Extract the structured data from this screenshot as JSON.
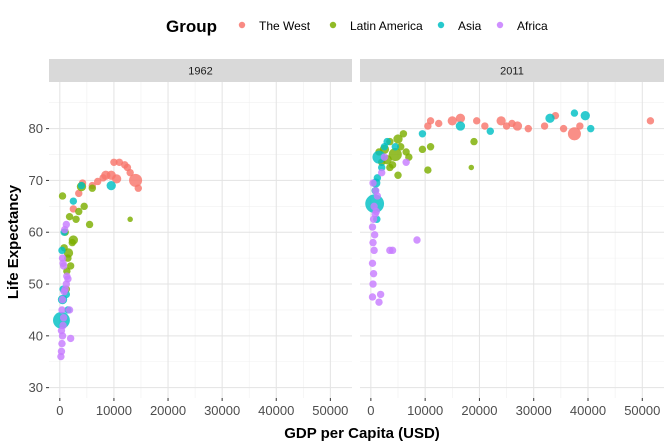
{
  "chart_data": {
    "type": "scatter",
    "facet_by": "year",
    "xlabel": "GDP per Capita (USD)",
    "ylabel": "Life Expectancy",
    "xlim": [
      -2000,
      54000
    ],
    "ylim": [
      28,
      89
    ],
    "xticks": [
      0,
      10000,
      20000,
      30000,
      40000,
      50000
    ],
    "yticks": [
      30,
      40,
      50,
      60,
      70,
      80
    ],
    "grid": true,
    "legend": {
      "title": "Group",
      "position": "top",
      "entries": [
        {
          "name": "The West",
          "color": "#F8766D"
        },
        {
          "name": "Latin America",
          "color": "#7CAE00"
        },
        {
          "name": "Asia",
          "color": "#00BFC4"
        },
        {
          "name": "Africa",
          "color": "#C77CFF"
        }
      ]
    },
    "point_size_note": "point area scales with population",
    "panels": [
      {
        "label": "1962",
        "series": [
          {
            "name": "The West",
            "points": [
              {
                "x": 2500,
                "y": 64.5,
                "s": 2
              },
              {
                "x": 3500,
                "y": 67.5,
                "s": 2
              },
              {
                "x": 4200,
                "y": 69.5,
                "s": 2
              },
              {
                "x": 6000,
                "y": 69.0,
                "s": 2
              },
              {
                "x": 7000,
                "y": 69.8,
                "s": 2
              },
              {
                "x": 8000,
                "y": 70.5,
                "s": 2
              },
              {
                "x": 8500,
                "y": 71.0,
                "s": 3
              },
              {
                "x": 9500,
                "y": 71.0,
                "s": 3
              },
              {
                "x": 10000,
                "y": 73.5,
                "s": 2
              },
              {
                "x": 10500,
                "y": 70.3,
                "s": 3
              },
              {
                "x": 11000,
                "y": 73.5,
                "s": 2
              },
              {
                "x": 12000,
                "y": 73.0,
                "s": 2
              },
              {
                "x": 12500,
                "y": 72.5,
                "s": 2
              },
              {
                "x": 13000,
                "y": 71.5,
                "s": 2
              },
              {
                "x": 14000,
                "y": 70.0,
                "s": 5
              },
              {
                "x": 14500,
                "y": 68.5,
                "s": 2
              }
            ]
          },
          {
            "name": "Latin America",
            "points": [
              {
                "x": 500,
                "y": 67.0,
                "s": 2
              },
              {
                "x": 800,
                "y": 57.0,
                "s": 2
              },
              {
                "x": 1000,
                "y": 60.0,
                "s": 2
              },
              {
                "x": 1200,
                "y": 49.0,
                "s": 2
              },
              {
                "x": 1300,
                "y": 52.5,
                "s": 2
              },
              {
                "x": 1500,
                "y": 55.0,
                "s": 2
              },
              {
                "x": 1600,
                "y": 56.0,
                "s": 3
              },
              {
                "x": 1800,
                "y": 63.0,
                "s": 2
              },
              {
                "x": 2000,
                "y": 53.5,
                "s": 2
              },
              {
                "x": 2300,
                "y": 58.0,
                "s": 2
              },
              {
                "x": 2500,
                "y": 58.5,
                "s": 3
              },
              {
                "x": 3000,
                "y": 62.5,
                "s": 2
              },
              {
                "x": 3500,
                "y": 64.0,
                "s": 2
              },
              {
                "x": 4000,
                "y": 68.8,
                "s": 3
              },
              {
                "x": 4500,
                "y": 65.0,
                "s": 2
              },
              {
                "x": 5500,
                "y": 61.5,
                "s": 2
              },
              {
                "x": 6000,
                "y": 68.5,
                "s": 2
              },
              {
                "x": 13000,
                "y": 62.5,
                "s": 1
              }
            ]
          },
          {
            "name": "Asia",
            "points": [
              {
                "x": 300,
                "y": 43.0,
                "s": 7
              },
              {
                "x": 500,
                "y": 47.0,
                "s": 3
              },
              {
                "x": 600,
                "y": 49.0,
                "s": 2
              },
              {
                "x": 400,
                "y": 56.5,
                "s": 2
              },
              {
                "x": 800,
                "y": 60.0,
                "s": 2
              },
              {
                "x": 1200,
                "y": 48.0,
                "s": 2
              },
              {
                "x": 1500,
                "y": 45.0,
                "s": 2
              },
              {
                "x": 2500,
                "y": 66.0,
                "s": 2
              },
              {
                "x": 4000,
                "y": 69.0,
                "s": 2
              },
              {
                "x": 9500,
                "y": 69.0,
                "s": 3
              }
            ]
          },
          {
            "name": "Africa",
            "points": [
              {
                "x": 200,
                "y": 36.0,
                "s": 2
              },
              {
                "x": 300,
                "y": 37.0,
                "s": 2
              },
              {
                "x": 400,
                "y": 38.5,
                "s": 2
              },
              {
                "x": 500,
                "y": 40.0,
                "s": 2
              },
              {
                "x": 300,
                "y": 41.0,
                "s": 2
              },
              {
                "x": 600,
                "y": 42.0,
                "s": 2
              },
              {
                "x": 700,
                "y": 43.5,
                "s": 2
              },
              {
                "x": 400,
                "y": 45.0,
                "s": 2
              },
              {
                "x": 500,
                "y": 47.0,
                "s": 2
              },
              {
                "x": 800,
                "y": 48.5,
                "s": 2
              },
              {
                "x": 1000,
                "y": 49.0,
                "s": 2
              },
              {
                "x": 1200,
                "y": 50.0,
                "s": 2
              },
              {
                "x": 1500,
                "y": 51.0,
                "s": 2
              },
              {
                "x": 1300,
                "y": 51.5,
                "s": 2
              },
              {
                "x": 700,
                "y": 53.5,
                "s": 2
              },
              {
                "x": 500,
                "y": 55.0,
                "s": 2
              },
              {
                "x": 1800,
                "y": 45.0,
                "s": 2
              },
              {
                "x": 2000,
                "y": 39.5,
                "s": 2
              },
              {
                "x": 900,
                "y": 60.5,
                "s": 2
              },
              {
                "x": 1200,
                "y": 61.5,
                "s": 2
              },
              {
                "x": 600,
                "y": 54.0,
                "s": 2
              }
            ]
          }
        ]
      },
      {
        "label": "2011",
        "series": [
          {
            "name": "The West",
            "points": [
              {
                "x": 10500,
                "y": 80.5,
                "s": 2
              },
              {
                "x": 11000,
                "y": 81.5,
                "s": 2
              },
              {
                "x": 12500,
                "y": 81.0,
                "s": 2
              },
              {
                "x": 15000,
                "y": 81.5,
                "s": 3
              },
              {
                "x": 16500,
                "y": 82.0,
                "s": 3
              },
              {
                "x": 19500,
                "y": 81.5,
                "s": 2
              },
              {
                "x": 21000,
                "y": 80.5,
                "s": 2
              },
              {
                "x": 24000,
                "y": 81.5,
                "s": 3
              },
              {
                "x": 25000,
                "y": 80.5,
                "s": 2
              },
              {
                "x": 26000,
                "y": 81.0,
                "s": 2
              },
              {
                "x": 27000,
                "y": 80.5,
                "s": 3
              },
              {
                "x": 29000,
                "y": 80.0,
                "s": 2
              },
              {
                "x": 32000,
                "y": 80.5,
                "s": 2
              },
              {
                "x": 34000,
                "y": 82.5,
                "s": 2
              },
              {
                "x": 35500,
                "y": 80.0,
                "s": 2
              },
              {
                "x": 37500,
                "y": 79.0,
                "s": 5
              },
              {
                "x": 38500,
                "y": 80.5,
                "s": 2
              },
              {
                "x": 51500,
                "y": 81.5,
                "s": 2
              }
            ]
          },
          {
            "name": "Latin America",
            "points": [
              {
                "x": 1500,
                "y": 75.5,
                "s": 2
              },
              {
                "x": 2000,
                "y": 73.5,
                "s": 2
              },
              {
                "x": 2500,
                "y": 76.0,
                "s": 3
              },
              {
                "x": 3000,
                "y": 74.0,
                "s": 3
              },
              {
                "x": 3500,
                "y": 77.5,
                "s": 2
              },
              {
                "x": 4000,
                "y": 73.0,
                "s": 2
              },
              {
                "x": 4500,
                "y": 75.0,
                "s": 5
              },
              {
                "x": 5000,
                "y": 78.0,
                "s": 3
              },
              {
                "x": 5500,
                "y": 76.5,
                "s": 2
              },
              {
                "x": 6000,
                "y": 79.0,
                "s": 2
              },
              {
                "x": 6500,
                "y": 75.5,
                "s": 2
              },
              {
                "x": 7000,
                "y": 74.5,
                "s": 2
              },
              {
                "x": 5000,
                "y": 71.0,
                "s": 2
              },
              {
                "x": 3500,
                "y": 72.5,
                "s": 2
              },
              {
                "x": 9500,
                "y": 76.0,
                "s": 2
              },
              {
                "x": 10500,
                "y": 72.0,
                "s": 2
              },
              {
                "x": 11000,
                "y": 76.5,
                "s": 2
              },
              {
                "x": 18500,
                "y": 72.5,
                "s": 1
              },
              {
                "x": 19000,
                "y": 77.5,
                "s": 2
              }
            ]
          },
          {
            "name": "Asia",
            "points": [
              {
                "x": 700,
                "y": 65.5,
                "s": 8
              },
              {
                "x": 900,
                "y": 69.5,
                "s": 3
              },
              {
                "x": 1200,
                "y": 70.5,
                "s": 2
              },
              {
                "x": 1500,
                "y": 74.5,
                "s": 5
              },
              {
                "x": 2000,
                "y": 72.5,
                "s": 2
              },
              {
                "x": 2500,
                "y": 76.5,
                "s": 2
              },
              {
                "x": 3000,
                "y": 77.5,
                "s": 2
              },
              {
                "x": 4500,
                "y": 76.5,
                "s": 2
              },
              {
                "x": 9500,
                "y": 79.0,
                "s": 2
              },
              {
                "x": 16500,
                "y": 80.5,
                "s": 3
              },
              {
                "x": 22000,
                "y": 79.5,
                "s": 2
              },
              {
                "x": 33000,
                "y": 82.0,
                "s": 3
              },
              {
                "x": 37500,
                "y": 83.0,
                "s": 2
              },
              {
                "x": 39500,
                "y": 82.5,
                "s": 3
              },
              {
                "x": 40500,
                "y": 80.0,
                "s": 2
              },
              {
                "x": 800,
                "y": 68.0,
                "s": 2
              },
              {
                "x": 1100,
                "y": 62.5,
                "s": 2
              }
            ]
          },
          {
            "name": "Africa",
            "points": [
              {
                "x": 300,
                "y": 47.5,
                "s": 2
              },
              {
                "x": 400,
                "y": 50.0,
                "s": 2
              },
              {
                "x": 500,
                "y": 52.0,
                "s": 2
              },
              {
                "x": 300,
                "y": 54.0,
                "s": 2
              },
              {
                "x": 600,
                "y": 56.5,
                "s": 2
              },
              {
                "x": 400,
                "y": 58.0,
                "s": 2
              },
              {
                "x": 700,
                "y": 59.5,
                "s": 2
              },
              {
                "x": 300,
                "y": 61.0,
                "s": 2
              },
              {
                "x": 500,
                "y": 62.5,
                "s": 2
              },
              {
                "x": 800,
                "y": 63.5,
                "s": 2
              },
              {
                "x": 1000,
                "y": 64.0,
                "s": 2
              },
              {
                "x": 600,
                "y": 65.0,
                "s": 2
              },
              {
                "x": 1200,
                "y": 67.0,
                "s": 2
              },
              {
                "x": 900,
                "y": 68.0,
                "s": 2
              },
              {
                "x": 400,
                "y": 69.5,
                "s": 2
              },
              {
                "x": 1500,
                "y": 46.5,
                "s": 2
              },
              {
                "x": 1800,
                "y": 48.0,
                "s": 2
              },
              {
                "x": 2000,
                "y": 71.5,
                "s": 2
              },
              {
                "x": 3500,
                "y": 56.5,
                "s": 2
              },
              {
                "x": 4000,
                "y": 56.5,
                "s": 2
              },
              {
                "x": 8500,
                "y": 58.5,
                "s": 2
              },
              {
                "x": 6500,
                "y": 73.5,
                "s": 2
              },
              {
                "x": 2500,
                "y": 74.5,
                "s": 2
              }
            ]
          }
        ]
      }
    ]
  }
}
